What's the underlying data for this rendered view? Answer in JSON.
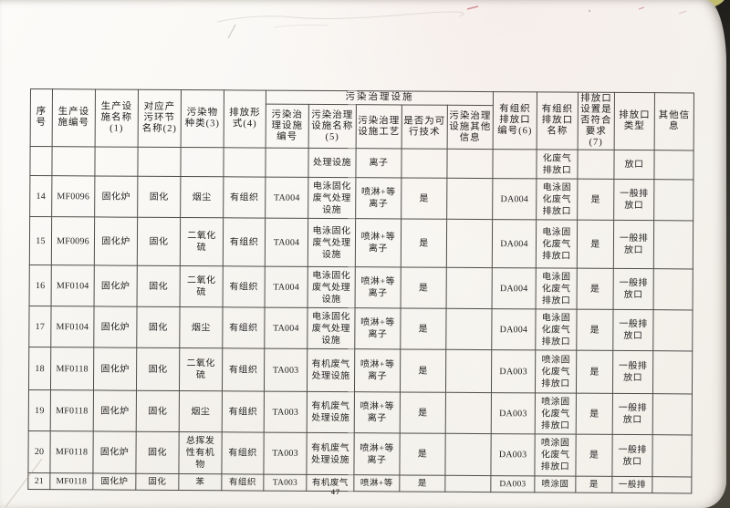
{
  "page": {
    "number": "47"
  },
  "table": {
    "group_header": "污染治理设施",
    "headers_left": [
      "序号",
      "生产设施编号",
      "生产设施名称(1)",
      "对应产污环节名称(2)",
      "污染物种类(3)",
      "排放形式(4)"
    ],
    "headers_group_children": [
      "污染治理设施编号",
      "污染治理设施名称(5)",
      "污染治理设施工艺",
      "是否为可行技术",
      "污染治理设施其他信息"
    ],
    "headers_right": [
      "有组织排放口编号(6)",
      "有组织排放口名称",
      "排放口设置是否符合要求(7)",
      "排放口类型",
      "其他信息"
    ],
    "rows": [
      [
        "",
        "",
        "",
        "",
        "",
        "",
        "",
        "处理设施",
        "离子",
        "",
        "",
        "",
        "化废气排放口",
        "",
        "放口",
        ""
      ],
      [
        "14",
        "MF0096",
        "固化炉",
        "固化",
        "烟尘",
        "有组织",
        "TA004",
        "电泳固化废气处理设施",
        "喷淋+等离子",
        "是",
        "",
        "DA004",
        "电泳固化废气排放口",
        "是",
        "一般排放口",
        ""
      ],
      [
        "15",
        "MF0096",
        "固化炉",
        "固化",
        "二氧化硫",
        "有组织",
        "TA004",
        "电泳固化废气处理设施",
        "喷淋+等离子",
        "是",
        "",
        "DA004",
        "电泳固化废气排放口",
        "是",
        "一般排放口",
        ""
      ],
      [
        "16",
        "MF0104",
        "固化炉",
        "固化",
        "二氧化硫",
        "有组织",
        "TA004",
        "电泳固化废气处理设施",
        "喷淋+等离子",
        "是",
        "",
        "DA004",
        "电泳固化废气排放口",
        "是",
        "一般排放口",
        ""
      ],
      [
        "17",
        "MF0104",
        "固化炉",
        "固化",
        "烟尘",
        "有组织",
        "TA004",
        "电泳固化废气处理设施",
        "喷淋+等离子",
        "是",
        "",
        "DA004",
        "电泳固化废气排放口",
        "是",
        "一般排放口",
        ""
      ],
      [
        "18",
        "MF0118",
        "固化炉",
        "固化",
        "二氧化硫",
        "有组织",
        "TA003",
        "有机废气处理设施",
        "喷淋+等离子",
        "是",
        "",
        "DA003",
        "喷涂固化废气排放口",
        "是",
        "一般排放口",
        ""
      ],
      [
        "19",
        "MF0118",
        "固化炉",
        "固化",
        "烟尘",
        "有组织",
        "TA003",
        "有机废气处理设施",
        "喷淋+等离子",
        "是",
        "",
        "DA003",
        "喷涂固化废气排放口",
        "是",
        "一般排放口",
        ""
      ],
      [
        "20",
        "MF0118",
        "固化炉",
        "固化",
        "总挥发性有机物",
        "有组织",
        "TA003",
        "有机废气处理设施",
        "喷淋+等离子",
        "是",
        "",
        "DA003",
        "喷涂固化废气排放口",
        "是",
        "一般排放口",
        ""
      ],
      [
        "21",
        "MF0118",
        "固化炉",
        "固化",
        "苯",
        "有组织",
        "TA003",
        "有机废气",
        "喷淋+等",
        "是",
        "",
        "DA003",
        "喷涂固",
        "是",
        "一般排",
        ""
      ]
    ]
  }
}
